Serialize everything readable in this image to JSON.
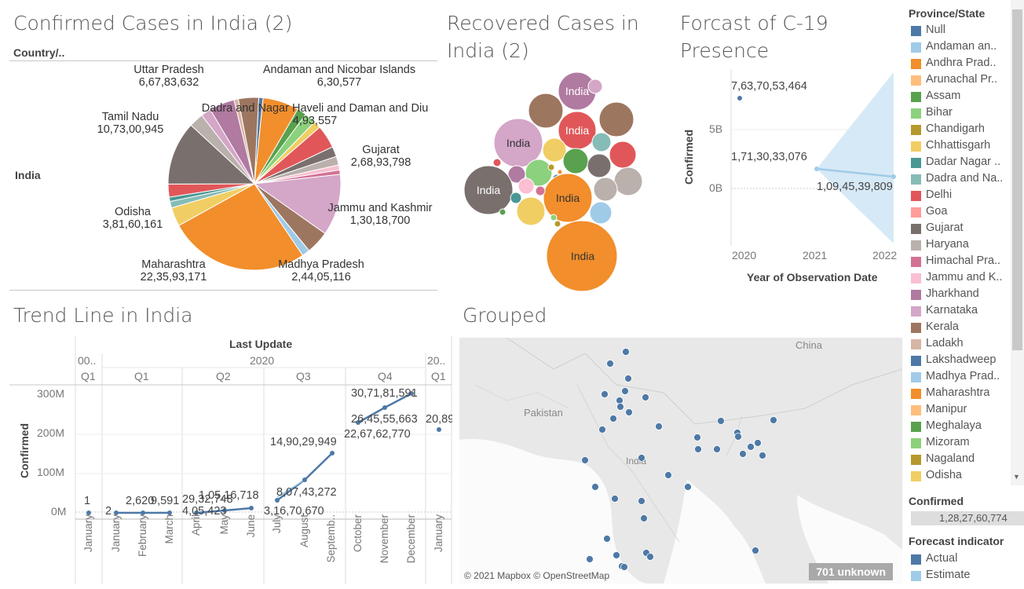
{
  "titles": {
    "confirmed": "Confirmed Cases in India (2)",
    "recovered_line1": "Recovered Cases in",
    "recovered_line2": "India (2)",
    "forecast_line1": "Forcast of C-19",
    "forecast_line2": "Presence",
    "trend": "Trend Line in India",
    "grouped": "Grouped"
  },
  "pie": {
    "country_header": "Country/..",
    "row_label": "India",
    "labels": [
      {
        "name": "Uttar Pradesh",
        "value": "6,67,83,632"
      },
      {
        "name": "Andaman and Nicobar Islands",
        "value": "6,30,577"
      },
      {
        "name": "Tamil Nadu",
        "value": "10,73,00,945"
      },
      {
        "name": "Dadra and Nagar Haveli and Daman and Diu",
        "value": "4,93,557"
      },
      {
        "name": "Gujarat",
        "value": "2,68,93,798"
      },
      {
        "name": "Jammu and Kashmir",
        "value": "1,30,18,700"
      },
      {
        "name": "Odisha",
        "value": "3,81,60,161"
      },
      {
        "name": "Maharashtra",
        "value": "22,35,93,171"
      },
      {
        "name": "Madhya Pradesh",
        "value": "2,44,05,116"
      }
    ]
  },
  "bubbles": {
    "label": "India"
  },
  "forecast": {
    "ylabel": "Confirmed",
    "xlabel": "Year of Observation Date",
    "yticks": [
      "5B",
      "0B"
    ],
    "xticks": [
      "2020",
      "2021",
      "2022"
    ],
    "values": [
      "7,63,70,53,464",
      "1,71,30,33,076",
      "1,09,45,39,809"
    ]
  },
  "trend": {
    "header": "Last Update",
    "years": [
      "00..",
      "2020",
      "20.."
    ],
    "quarters": [
      "Q1",
      "Q1",
      "Q2",
      "Q3",
      "Q4",
      "Q1"
    ],
    "months": [
      "January",
      "January",
      "February",
      "March",
      "April",
      "May",
      "June",
      "July",
      "August",
      "Septemb..",
      "October",
      "November",
      "December",
      "January"
    ],
    "ylabel": "Confirmed",
    "yticks": [
      "300M",
      "200M",
      "100M",
      "0M"
    ],
    "values": [
      "1",
      "2",
      "2,620",
      "9,591",
      "29,32,748",
      "4,05,423",
      "1,05,16,718",
      "3,16,70,670",
      "8,07,43,272",
      "14,90,29,949",
      "22,67,62,770",
      "26,45,55,663",
      "30,71,81,591",
      "20,89"
    ]
  },
  "map": {
    "labels": {
      "china": "China",
      "pakistan": "Pakistan",
      "india": "India"
    },
    "attribution": "© 2021 Mapbox © OpenStreetMap",
    "unknown": "701 unknown"
  },
  "legend": {
    "header": "Province/State",
    "items": [
      {
        "label": "Null",
        "color": "#4e79a7"
      },
      {
        "label": "Andaman an..",
        "color": "#a0cbe8"
      },
      {
        "label": "Andhra Prad..",
        "color": "#f28e2b"
      },
      {
        "label": "Arunachal Pr..",
        "color": "#ffbe7d"
      },
      {
        "label": "Assam",
        "color": "#59a14f"
      },
      {
        "label": "Bihar",
        "color": "#8cd17d"
      },
      {
        "label": "Chandigarh",
        "color": "#b6992d"
      },
      {
        "label": "Chhattisgarh",
        "color": "#f1ce63"
      },
      {
        "label": "Dadar Nagar ..",
        "color": "#499894"
      },
      {
        "label": "Dadra and Na..",
        "color": "#86bcb6"
      },
      {
        "label": "Delhi",
        "color": "#e15759"
      },
      {
        "label": "Goa",
        "color": "#ff9d9a"
      },
      {
        "label": "Gujarat",
        "color": "#79706e"
      },
      {
        "label": "Haryana",
        "color": "#bab0ac"
      },
      {
        "label": "Himachal Pra..",
        "color": "#d37295"
      },
      {
        "label": "Jammu and K..",
        "color": "#fabfd2"
      },
      {
        "label": "Jharkhand",
        "color": "#b07aa1"
      },
      {
        "label": "Karnataka",
        "color": "#d4a6c8"
      },
      {
        "label": "Kerala",
        "color": "#9d7660"
      },
      {
        "label": "Ladakh",
        "color": "#d7b5a6"
      },
      {
        "label": "Lakshadweep",
        "color": "#4e79a7"
      },
      {
        "label": "Madhya Prad..",
        "color": "#a0cbe8"
      },
      {
        "label": "Maharashtra",
        "color": "#f28e2b"
      },
      {
        "label": "Manipur",
        "color": "#ffbe7d"
      },
      {
        "label": "Meghalaya",
        "color": "#59a14f"
      },
      {
        "label": "Mizoram",
        "color": "#8cd17d"
      },
      {
        "label": "Nagaland",
        "color": "#b6992d"
      },
      {
        "label": "Odisha",
        "color": "#f1ce63"
      }
    ],
    "confirmed_header": "Confirmed",
    "confirmed_value": "1,28,27,60,774",
    "forecast_header": "Forecast indicator",
    "forecast_items": [
      {
        "label": "Actual",
        "color": "#4e79a7"
      },
      {
        "label": "Estimate",
        "color": "#a0cbe8"
      }
    ]
  }
}
